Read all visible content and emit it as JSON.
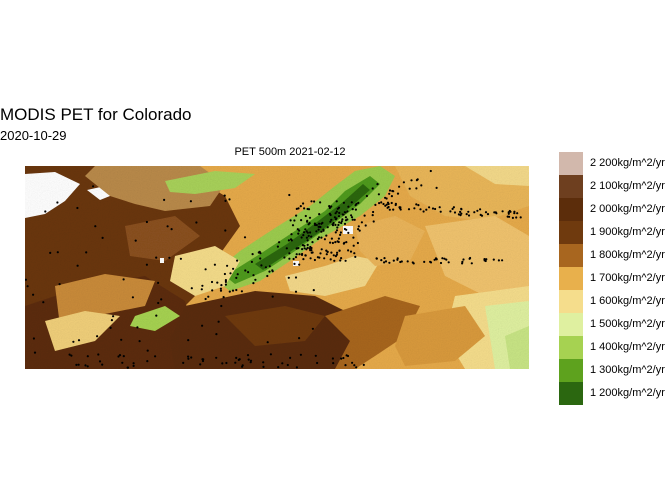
{
  "title": "MODIS PET for Colorado",
  "subtitle": "2020-10-29",
  "panel_title": "PET  500m  2021-02-12",
  "legend": [
    {
      "label": "2 200kg/m^2/yr",
      "color": "#d2b8ac"
    },
    {
      "label": "2 100kg/m^2/yr",
      "color": "#6e3f1f"
    },
    {
      "label": "2 000kg/m^2/yr",
      "color": "#5c2d0b"
    },
    {
      "label": "1 900kg/m^2/yr",
      "color": "#6f3a0e"
    },
    {
      "label": "1 800kg/m^2/yr",
      "color": "#a8661f"
    },
    {
      "label": "1 700kg/m^2/yr",
      "color": "#e8b04c"
    },
    {
      "label": "1 600kg/m^2/yr",
      "color": "#f5dd8c"
    },
    {
      "label": "1 500kg/m^2/yr",
      "color": "#dff0a0"
    },
    {
      "label": "1 400kg/m^2/yr",
      "color": "#a6d251"
    },
    {
      "label": "1 300kg/m^2/yr",
      "color": "#5ea21e"
    },
    {
      "label": "1 200kg/m^2/yr",
      "color": "#2b6710"
    }
  ]
}
